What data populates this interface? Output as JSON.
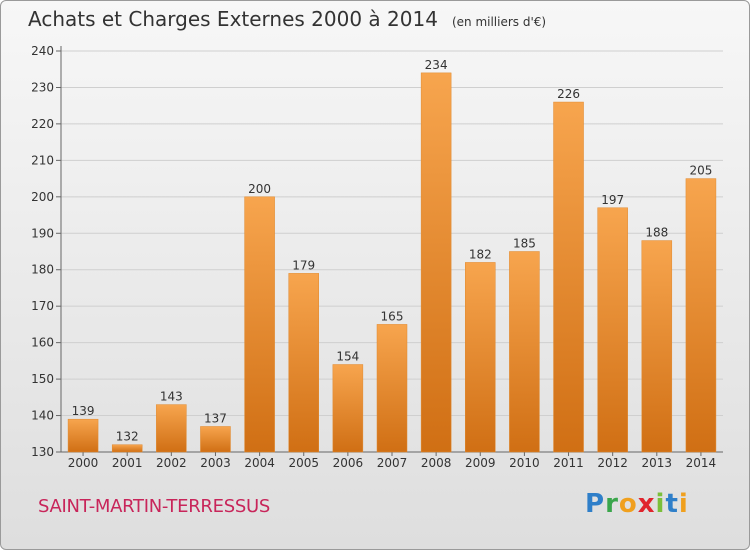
{
  "title": "Achats et Charges Externes 2000 à 2014",
  "subtitle": "(en milliers d'€)",
  "commune": "SAINT-MARTIN-TERRESSUS",
  "logo_text": "Proxiti",
  "colors": {
    "bar_light": "#f7a54e",
    "bar_dark": "#d06f14",
    "commune_text": "#c8255a"
  },
  "chart_data": {
    "type": "bar",
    "title": "Achats et Charges Externes 2000 à 2014",
    "subtitle": "(en milliers d'€)",
    "categories": [
      "2000",
      "2001",
      "2002",
      "2003",
      "2004",
      "2005",
      "2006",
      "2007",
      "2008",
      "2009",
      "2010",
      "2011",
      "2012",
      "2013",
      "2014"
    ],
    "values": [
      139,
      132,
      143,
      137,
      200,
      179,
      154,
      165,
      234,
      182,
      185,
      226,
      197,
      188,
      205
    ],
    "yticks": [
      130,
      140,
      150,
      160,
      170,
      180,
      190,
      200,
      210,
      220,
      230,
      240
    ],
    "ylim": [
      130,
      240
    ],
    "grid": true,
    "data_labels": true
  }
}
